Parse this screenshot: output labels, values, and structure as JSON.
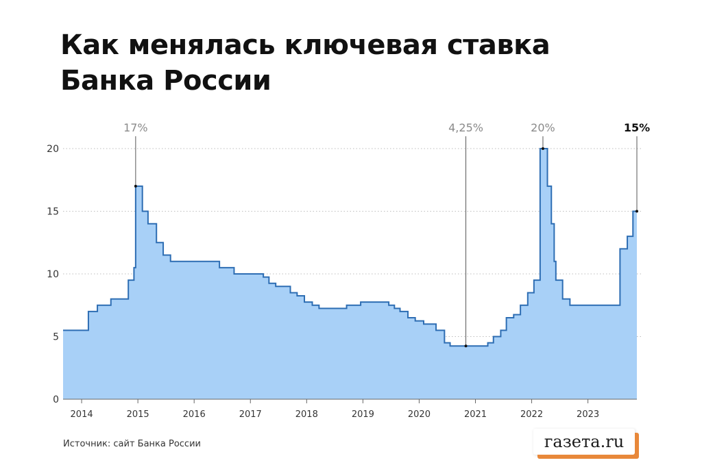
{
  "header": {
    "title_line1": "Как менялась ключевая ставка",
    "title_line2": "Банка России"
  },
  "footer": {
    "source": "Источник: сайт Банка России",
    "logo": "газета.ru"
  },
  "colors": {
    "fill": "#a8d0f7",
    "line": "#2d6db3",
    "grid": "#bdbdbd",
    "annotation": "#555555",
    "logo_shadow": "#e8883a"
  },
  "chart_data": {
    "type": "area",
    "step": true,
    "title": "Как менялась ключевая ставка Банка России",
    "xlim": [
      2013.67,
      2023.87
    ],
    "ylim": [
      0,
      20
    ],
    "yticks": [
      0,
      5,
      10,
      15,
      20
    ],
    "xticks": [
      2014,
      2015,
      2016,
      2017,
      2018,
      2019,
      2020,
      2021,
      2022,
      2023
    ],
    "grid": "horizontal dotted",
    "series": [
      {
        "points": [
          [
            2013.67,
            5.5
          ],
          [
            2014.12,
            7
          ],
          [
            2014.28,
            7.5
          ],
          [
            2014.52,
            8
          ],
          [
            2014.83,
            9.5
          ],
          [
            2014.93,
            10.5
          ],
          [
            2014.96,
            17
          ],
          [
            2015.08,
            15
          ],
          [
            2015.18,
            14
          ],
          [
            2015.33,
            12.5
          ],
          [
            2015.45,
            11.5
          ],
          [
            2015.58,
            11
          ],
          [
            2016.45,
            10.5
          ],
          [
            2016.71,
            10
          ],
          [
            2017.23,
            9.75
          ],
          [
            2017.33,
            9.25
          ],
          [
            2017.45,
            9
          ],
          [
            2017.71,
            8.5
          ],
          [
            2017.83,
            8.25
          ],
          [
            2017.96,
            7.75
          ],
          [
            2018.1,
            7.5
          ],
          [
            2018.22,
            7.25
          ],
          [
            2018.71,
            7.5
          ],
          [
            2018.96,
            7.75
          ],
          [
            2019.46,
            7.5
          ],
          [
            2019.56,
            7.25
          ],
          [
            2019.66,
            7
          ],
          [
            2019.8,
            6.5
          ],
          [
            2019.93,
            6.25
          ],
          [
            2020.08,
            6
          ],
          [
            2020.3,
            5.5
          ],
          [
            2020.45,
            4.5
          ],
          [
            2020.55,
            4.25
          ],
          [
            2021.22,
            4.5
          ],
          [
            2021.32,
            5
          ],
          [
            2021.45,
            5.5
          ],
          [
            2021.55,
            6.5
          ],
          [
            2021.68,
            6.75
          ],
          [
            2021.8,
            7.5
          ],
          [
            2021.93,
            8.5
          ],
          [
            2022.04,
            9.5
          ],
          [
            2022.15,
            20
          ],
          [
            2022.28,
            17
          ],
          [
            2022.35,
            14
          ],
          [
            2022.4,
            11
          ],
          [
            2022.43,
            9.5
          ],
          [
            2022.55,
            8
          ],
          [
            2022.68,
            7.5
          ],
          [
            2023.57,
            12
          ],
          [
            2023.7,
            13
          ],
          [
            2023.8,
            15
          ],
          [
            2023.87,
            15
          ]
        ]
      }
    ],
    "annotations": [
      {
        "label": "17%",
        "x": 2014.96,
        "y": 17,
        "bold": false
      },
      {
        "label": "4,25%",
        "x": 2020.83,
        "y": 4.25,
        "bold": false
      },
      {
        "label": "20%",
        "x": 2022.2,
        "y": 20,
        "bold": false
      },
      {
        "label": "15%",
        "x": 2023.87,
        "y": 15,
        "bold": true
      }
    ]
  }
}
